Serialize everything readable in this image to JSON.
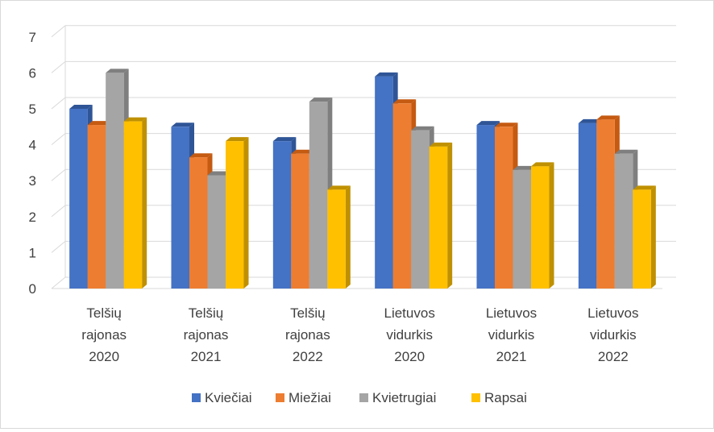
{
  "chart_data": {
    "type": "bar",
    "style": "3d-clustered-column",
    "title": "",
    "xlabel": "",
    "ylabel": "",
    "ylim": [
      0,
      7
    ],
    "yticks": [
      0,
      1,
      2,
      3,
      4,
      5,
      6,
      7
    ],
    "grid": true,
    "legend_position": "bottom",
    "categories": [
      [
        "Telšių",
        "rajonas",
        "2020"
      ],
      [
        "Telšių",
        "rajonas",
        "2021"
      ],
      [
        "Telšių",
        "rajonas",
        "2022"
      ],
      [
        "Lietuvos",
        "vidurkis",
        "2020"
      ],
      [
        "Lietuvos",
        "vidurkis",
        "2021"
      ],
      [
        "Lietuvos",
        "vidurkis",
        "2022"
      ]
    ],
    "series": [
      {
        "name": "Kviečiai",
        "color": "#4472C4",
        "shade": "#2F5597",
        "values": [
          5.0,
          4.5,
          4.1,
          5.9,
          4.55,
          4.6
        ]
      },
      {
        "name": "Miežiai",
        "color": "#ED7D31",
        "shade": "#C55A11",
        "values": [
          4.55,
          3.65,
          3.75,
          5.15,
          4.5,
          4.7
        ]
      },
      {
        "name": "Kvietrugiai",
        "color": "#A5A5A5",
        "shade": "#7F7F7F",
        "values": [
          6.0,
          3.15,
          5.2,
          4.4,
          3.3,
          3.75
        ]
      },
      {
        "name": "Rapsai",
        "color": "#FFC000",
        "shade": "#BF9000",
        "values": [
          4.65,
          4.1,
          2.75,
          3.95,
          3.4,
          2.75
        ]
      }
    ]
  }
}
